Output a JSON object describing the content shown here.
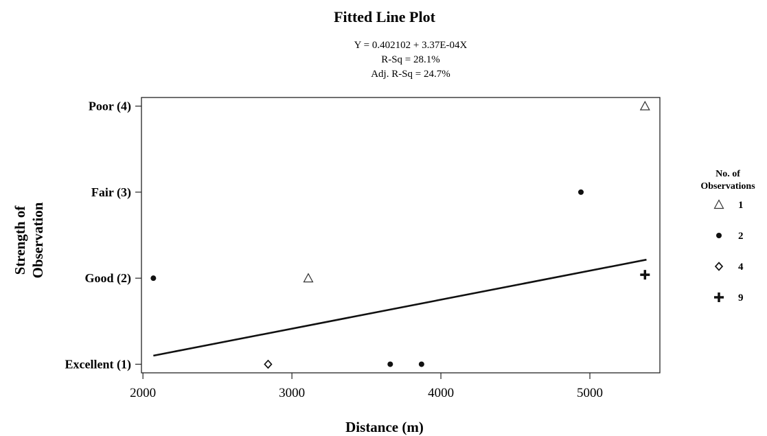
{
  "chart_data": {
    "type": "scatter",
    "title": "Fitted Line Plot",
    "equation_lines": [
      "Y = 0.402102 + 3.37E-04X",
      "R-Sq = 28.1%",
      "Adj. R-Sq = 24.7%"
    ],
    "xlabel": "Distance (m)",
    "ylabel_lines": [
      "Strength of",
      "Observation"
    ],
    "xlim": [
      1990,
      5470
    ],
    "ylim": [
      0.9,
      4.1
    ],
    "x_ticks": [
      2000,
      3000,
      4000,
      5000
    ],
    "x_tick_labels": [
      "2000",
      "3000",
      "4000",
      "5000"
    ],
    "y_ticks": [
      1,
      2,
      3,
      4
    ],
    "y_tick_labels": [
      "Excellent (1)",
      "Good (2)",
      "Fair (3)",
      "Poor (4)"
    ],
    "grid": false,
    "fit_line": {
      "intercept": 0.402102,
      "slope": 0.000337,
      "x_range": [
        2070,
        5380
      ]
    },
    "points": [
      {
        "x": 2070,
        "y": 2,
        "count": 2
      },
      {
        "x": 3110,
        "y": 2,
        "count": 1
      },
      {
        "x": 2840,
        "y": 1,
        "count": 4
      },
      {
        "x": 3660,
        "y": 1,
        "count": 2
      },
      {
        "x": 3870,
        "y": 1,
        "count": 2
      },
      {
        "x": 4940,
        "y": 3,
        "count": 2
      },
      {
        "x": 5370,
        "y": 4,
        "count": 1
      },
      {
        "x": 5370,
        "y": 2.04,
        "count": 9
      }
    ],
    "legend": {
      "title_lines": [
        "No. of",
        "Observations"
      ],
      "position": "right",
      "entries": [
        {
          "count": 1,
          "label": "1",
          "marker": "triangle-icon"
        },
        {
          "count": 2,
          "label": "2",
          "marker": "dot-icon"
        },
        {
          "count": 4,
          "label": "4",
          "marker": "diamond-icon"
        },
        {
          "count": 9,
          "label": "9",
          "marker": "plus-icon"
        }
      ]
    }
  }
}
